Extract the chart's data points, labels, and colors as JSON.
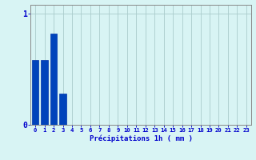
{
  "values": [
    0.58,
    0.58,
    0.82,
    0.28,
    0,
    0,
    0,
    0,
    0,
    0,
    0,
    0,
    0,
    0,
    0,
    0,
    0,
    0,
    0,
    0,
    0,
    0,
    0,
    0
  ],
  "bar_color": "#0044bb",
  "bar_edge_color": "#0033aa",
  "background_color": "#d8f4f4",
  "grid_color": "#aacccc",
  "xlabel": "Précipitations 1h ( mm )",
  "xlabel_color": "#0000cc",
  "tick_color": "#0000cc",
  "ylim": [
    0,
    1.08
  ],
  "xlim": [
    -0.5,
    23.5
  ],
  "yticks": [
    0,
    1
  ],
  "xtick_labels": [
    "0",
    "1",
    "2",
    "3",
    "4",
    "5",
    "6",
    "7",
    "8",
    "9",
    "10",
    "11",
    "12",
    "13",
    "14",
    "15",
    "16",
    "17",
    "18",
    "19",
    "20",
    "21",
    "22",
    "23"
  ],
  "bar_width": 0.75
}
